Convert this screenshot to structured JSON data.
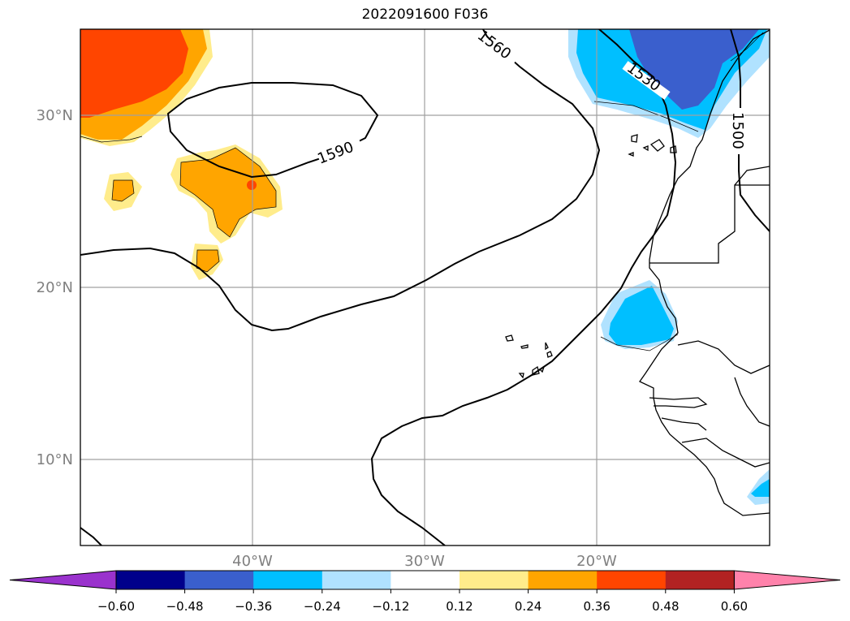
{
  "title": "2022091600 F036",
  "axis": {
    "lat_labels": [
      "30°N",
      "20°N",
      "10°N"
    ],
    "lon_labels": [
      "40°W",
      "30°W",
      "20°W"
    ]
  },
  "contour_labels": [
    "1560",
    "1530",
    "1500",
    "1590"
  ],
  "colorbar": {
    "ticks": [
      "−0.60",
      "−0.48",
      "−0.36",
      "−0.24",
      "−0.12",
      "0.12",
      "0.24",
      "0.36",
      "0.48",
      "0.60"
    ],
    "colors": [
      "#9a32cd",
      "#00008b",
      "#3a5fcd",
      "#00bfff",
      "#b0e2ff",
      "#ffffff",
      "#ffec8b",
      "#ffa500",
      "#ff4500",
      "#b22222",
      "#ff82ab"
    ]
  }
}
